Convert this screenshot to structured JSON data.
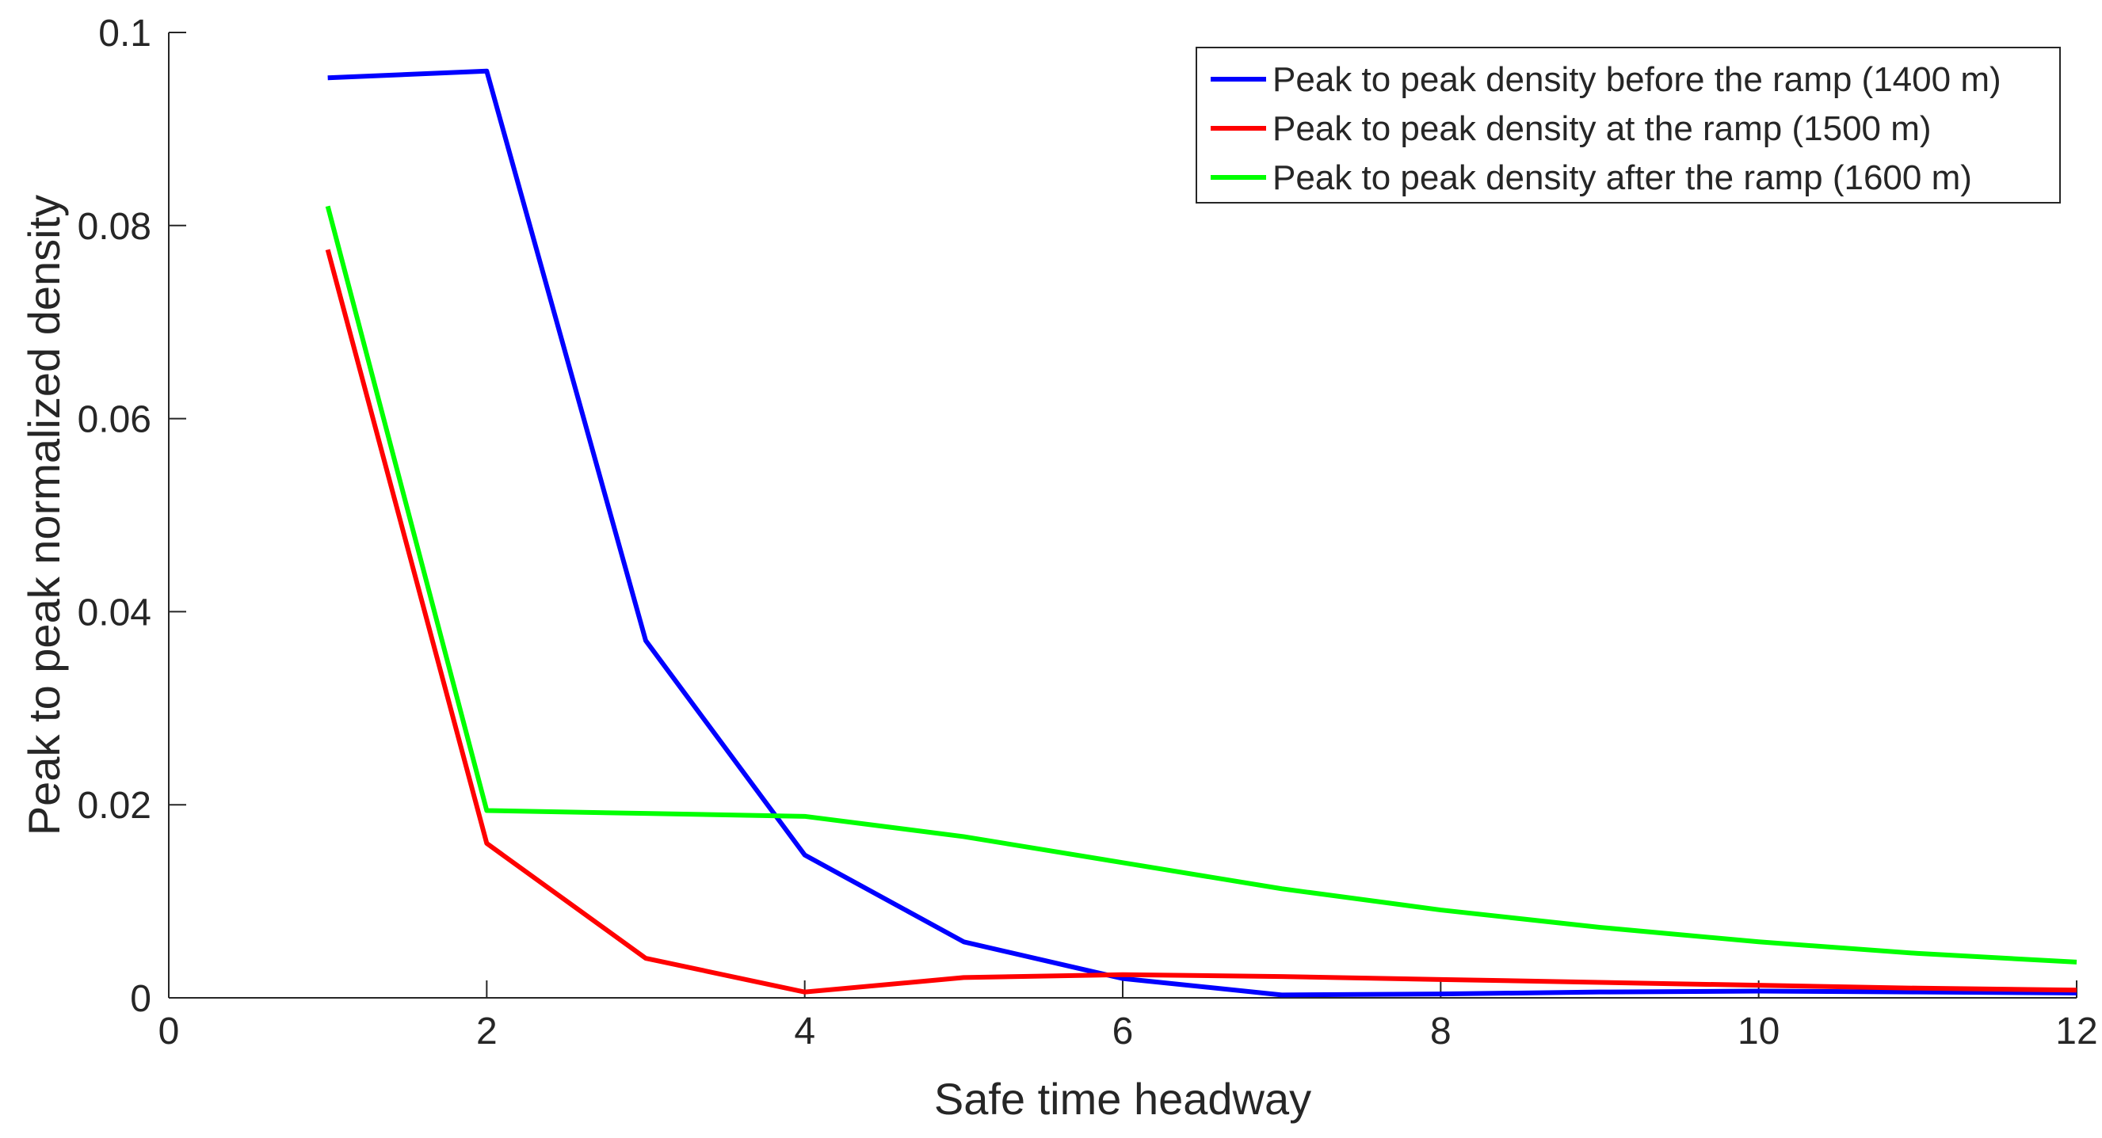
{
  "chart_data": {
    "type": "line",
    "title": "",
    "xlabel": "Safe time headway",
    "ylabel": "Peak to peak normalized density",
    "xlim": [
      0,
      12
    ],
    "ylim": [
      0,
      0.1
    ],
    "xticks": [
      0,
      2,
      4,
      6,
      8,
      10,
      12
    ],
    "xtick_labels": [
      "0",
      "2",
      "4",
      "6",
      "8",
      "10",
      "12"
    ],
    "yticks": [
      0,
      0.02,
      0.04,
      0.06,
      0.08,
      0.1
    ],
    "ytick_labels": [
      "0",
      "0.02",
      "0.04",
      "0.06",
      "0.08",
      "0.1"
    ],
    "grid": false,
    "legend_position": "top-right",
    "x": [
      1,
      2,
      3,
      4,
      5,
      6,
      7,
      8,
      9,
      10,
      11,
      12
    ],
    "series": [
      {
        "name": "Peak to peak density before the ramp (1400 m)",
        "color": "#0000ff",
        "values": [
          0.0953,
          0.096,
          0.037,
          0.0148,
          0.0058,
          0.002,
          0.0003,
          0.0004,
          0.0006,
          0.0007,
          0.0006,
          0.0005
        ]
      },
      {
        "name": "Peak to peak density at the ramp (1500 m)",
        "color": "#ff0000",
        "values": [
          0.0775,
          0.016,
          0.0041,
          0.0006,
          0.0021,
          0.0024,
          0.0022,
          0.0019,
          0.0016,
          0.0013,
          0.001,
          0.0008
        ]
      },
      {
        "name": "Peak to peak density after the ramp (1600 m)",
        "color": "#00ff00",
        "values": [
          0.082,
          0.0194,
          0.0191,
          0.0188,
          0.0167,
          0.014,
          0.0113,
          0.0091,
          0.0073,
          0.0058,
          0.0046,
          0.0037
        ]
      }
    ]
  }
}
